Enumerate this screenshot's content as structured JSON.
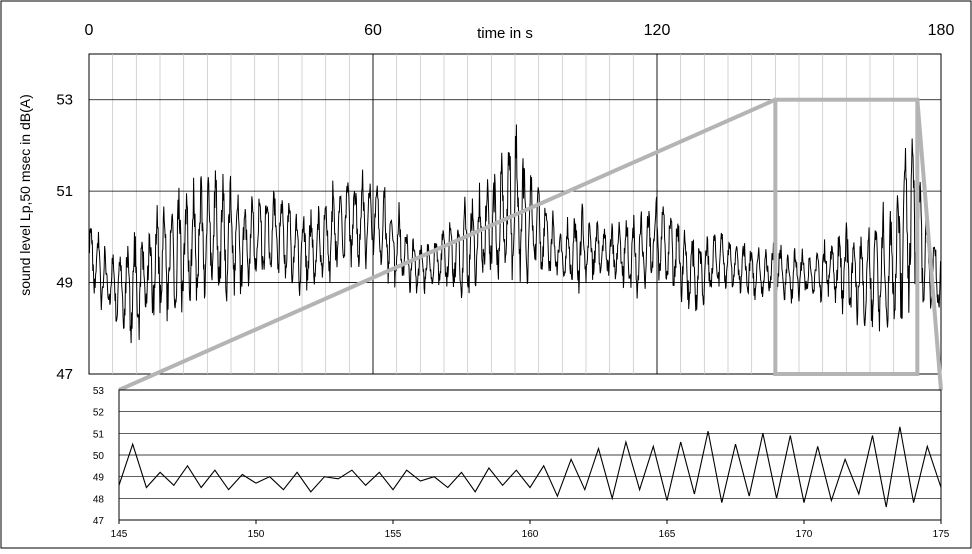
{
  "chart_data": [
    {
      "type": "line",
      "title": "",
      "xlabel": "time in s",
      "ylabel": "sound level Lp,50 msec in dB(A)",
      "xlim": [
        0,
        180
      ],
      "ylim": [
        47,
        54
      ],
      "x_ticks": [
        0,
        60,
        120,
        180
      ],
      "y_ticks": [
        47,
        49,
        51,
        53
      ],
      "grid": true,
      "x_axis_position": "top",
      "series": [
        {
          "x": [
            0,
            2,
            4,
            6,
            8,
            10,
            12,
            14,
            16,
            18,
            20,
            22,
            24,
            26,
            28,
            30,
            32,
            34,
            36,
            38,
            40,
            42,
            44,
            46,
            48,
            50,
            52,
            54,
            56,
            58,
            60,
            62,
            64,
            66,
            68,
            70,
            72,
            74,
            76,
            78,
            80,
            82,
            84,
            86,
            88,
            90,
            92,
            94,
            96,
            98,
            100,
            102,
            104,
            106,
            108,
            110,
            112,
            114,
            116,
            118,
            120,
            122,
            124,
            126,
            128,
            130,
            132,
            134,
            136,
            138,
            140,
            142,
            144,
            146,
            148,
            150,
            152,
            154,
            156,
            158,
            160,
            162,
            164,
            166,
            168,
            170,
            172,
            174,
            176,
            178,
            180
          ],
          "max": [
            50.8,
            50.4,
            49.9,
            50.0,
            50.2,
            50.5,
            50.6,
            51.0,
            51.3,
            51.5,
            51.7,
            51.8,
            52.0,
            52.1,
            51.8,
            51.6,
            51.3,
            51.2,
            51.4,
            51.5,
            51.4,
            51.2,
            51.0,
            50.9,
            51.0,
            51.2,
            51.5,
            51.7,
            51.6,
            51.7,
            51.8,
            51.4,
            51.0,
            50.8,
            50.3,
            50.2,
            50.1,
            50.3,
            50.6,
            50.9,
            51.2,
            51.4,
            51.6,
            51.9,
            52.4,
            53.3,
            52.0,
            51.8,
            51.2,
            50.7,
            50.4,
            50.8,
            51.0,
            50.9,
            50.6,
            50.4,
            50.6,
            50.8,
            50.7,
            51.0,
            51.3,
            51.0,
            50.8,
            50.5,
            50.3,
            50.2,
            50.4,
            50.3,
            50.2,
            50.1,
            50.0,
            49.9,
            50.0,
            50.1,
            49.9,
            50.0,
            49.8,
            50.0,
            50.2,
            50.4,
            50.6,
            50.4,
            50.6,
            50.8,
            51.0,
            51.3,
            52.4,
            53.1,
            51.6,
            50.6,
            50.0
          ],
          "min": [
            48.6,
            48.2,
            48.0,
            47.8,
            47.5,
            47.3,
            47.6,
            47.8,
            47.6,
            47.7,
            47.8,
            47.9,
            48.0,
            48.1,
            48.2,
            48.3,
            48.4,
            48.6,
            48.7,
            48.8,
            48.7,
            48.5,
            48.4,
            48.5,
            48.6,
            48.7,
            48.8,
            49.0,
            49.1,
            49.0,
            49.1,
            48.9,
            48.7,
            48.6,
            48.5,
            48.6,
            48.7,
            48.8,
            48.6,
            48.4,
            48.3,
            48.5,
            48.6,
            48.5,
            48.4,
            48.6,
            48.6,
            48.7,
            48.8,
            48.8,
            48.8,
            48.6,
            48.5,
            48.6,
            48.8,
            48.9,
            48.7,
            48.5,
            48.4,
            48.6,
            48.8,
            48.6,
            48.4,
            48.2,
            48.0,
            48.2,
            48.5,
            48.6,
            48.7,
            48.6,
            48.5,
            48.4,
            48.6,
            48.5,
            48.3,
            48.4,
            48.5,
            48.5,
            48.4,
            48.2,
            48.0,
            47.8,
            47.6,
            47.5,
            47.4,
            47.6,
            47.5,
            47.5,
            47.8,
            48.2,
            48.0
          ]
        }
      ],
      "zoom_region": {
        "x_range": [
          145,
          175
        ],
        "y_range": [
          47,
          53
        ]
      }
    },
    {
      "type": "line",
      "title": "",
      "xlabel": "",
      "ylabel": "",
      "xlim": [
        145,
        175
      ],
      "ylim": [
        47,
        53
      ],
      "x_ticks": [
        145,
        150,
        155,
        160,
        165,
        170,
        175
      ],
      "y_ticks": [
        47,
        48,
        49,
        50,
        51,
        52,
        53
      ],
      "grid": true,
      "series": [
        {
          "x": [
            145.0,
            145.5,
            146.0,
            146.5,
            147.0,
            147.5,
            148.0,
            148.5,
            149.0,
            149.5,
            150.0,
            150.5,
            151.0,
            151.5,
            152.0,
            152.5,
            153.0,
            153.5,
            154.0,
            154.5,
            155.0,
            155.5,
            156.0,
            156.5,
            157.0,
            157.5,
            158.0,
            158.5,
            159.0,
            159.5,
            160.0,
            160.5,
            161.0,
            161.5,
            162.0,
            162.5,
            163.0,
            163.5,
            164.0,
            164.5,
            165.0,
            165.5,
            166.0,
            166.5,
            167.0,
            167.5,
            168.0,
            168.5,
            169.0,
            169.5,
            170.0,
            170.5,
            171.0,
            171.5,
            172.0,
            172.5,
            173.0,
            173.5,
            174.0,
            174.5,
            175.0
          ],
          "y": [
            48.6,
            50.5,
            48.5,
            49.2,
            48.6,
            49.5,
            48.5,
            49.3,
            48.4,
            49.1,
            48.7,
            49.0,
            48.4,
            49.2,
            48.3,
            49.0,
            48.9,
            49.3,
            48.6,
            49.2,
            48.4,
            49.3,
            48.8,
            49.0,
            48.5,
            49.2,
            48.3,
            49.4,
            48.6,
            49.3,
            48.5,
            49.5,
            48.1,
            49.8,
            48.4,
            50.3,
            48.0,
            50.6,
            48.4,
            50.4,
            47.9,
            50.6,
            48.2,
            51.1,
            47.8,
            50.5,
            48.1,
            51.0,
            48.0,
            50.9,
            47.8,
            50.4,
            47.9,
            49.8,
            48.2,
            50.9,
            47.6,
            51.3,
            47.8,
            50.4,
            48.5
          ]
        }
      ]
    }
  ]
}
